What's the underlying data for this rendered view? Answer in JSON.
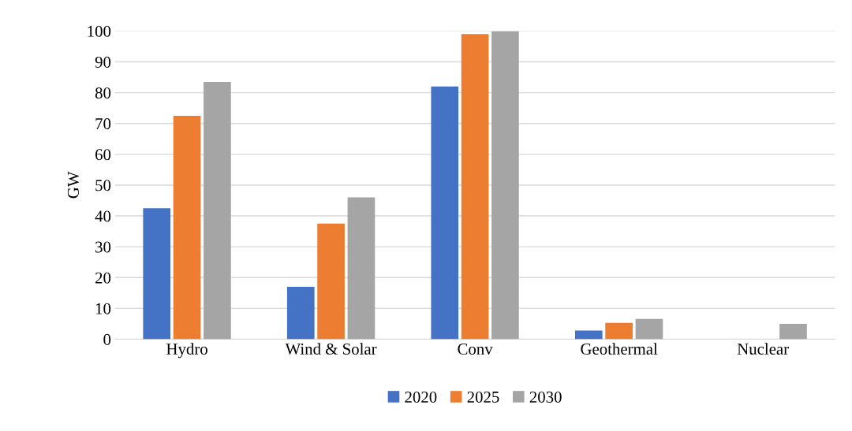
{
  "chart_data": {
    "type": "bar",
    "ylabel": "GW",
    "categories": [
      "Hydro",
      "Wind & Solar",
      "Conv",
      "Geothermal",
      "Nuclear"
    ],
    "series": [
      {
        "name": "2020",
        "color": "#4472c4",
        "values": [
          42.5,
          17,
          82,
          2.8,
          0
        ]
      },
      {
        "name": "2025",
        "color": "#ed7d31",
        "values": [
          72.5,
          37.5,
          99,
          5.3,
          0
        ]
      },
      {
        "name": "2030",
        "color": "#a5a5a5",
        "values": [
          83.5,
          46,
          100,
          6.6,
          5
        ]
      }
    ],
    "ylim": [
      0,
      100
    ],
    "yticks": [
      0,
      10,
      20,
      30,
      40,
      50,
      60,
      70,
      80,
      90,
      100
    ],
    "grid": "y",
    "legend": "bottom"
  }
}
